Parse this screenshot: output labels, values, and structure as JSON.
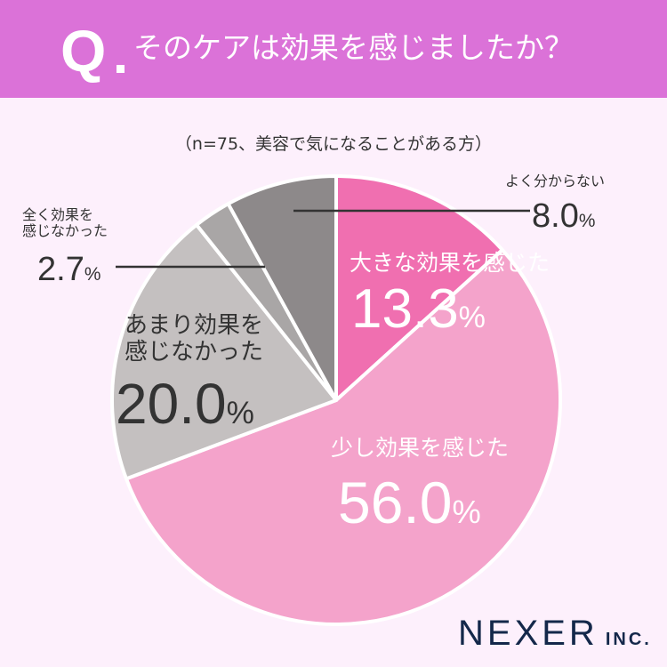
{
  "header": {
    "q_mark": "Q",
    "title": "そのケアは効果を感じましたか？"
  },
  "note": "（n=75、美容で気になることがある方）",
  "chart_data": {
    "type": "pie",
    "start": "top",
    "direction": "clockwise",
    "slices": [
      {
        "label": "大きな効果を感じた",
        "value": 13.3,
        "display": "13.3",
        "color": "#f06fb0"
      },
      {
        "label": "少し効果を感じた",
        "value": 56.0,
        "display": "56.0",
        "color": "#f4a3cb"
      },
      {
        "label": "あまり効果を感じなかった",
        "label_lines": [
          "あまり効果を",
          "感じなかった"
        ],
        "value": 20.0,
        "display": "20.0",
        "color": "#c4c0c0"
      },
      {
        "label": "全く効果を感じなかった",
        "label_lines": [
          "全く効果を",
          "感じなかった"
        ],
        "value": 2.7,
        "display": "2.7",
        "color": "#a9a6a6"
      },
      {
        "label": "よく分からない",
        "value": 8.0,
        "display": "8.0",
        "color": "#8d898a"
      }
    ],
    "unit": "%"
  },
  "logo": {
    "name": "NEXER",
    "suffix": "INC."
  }
}
